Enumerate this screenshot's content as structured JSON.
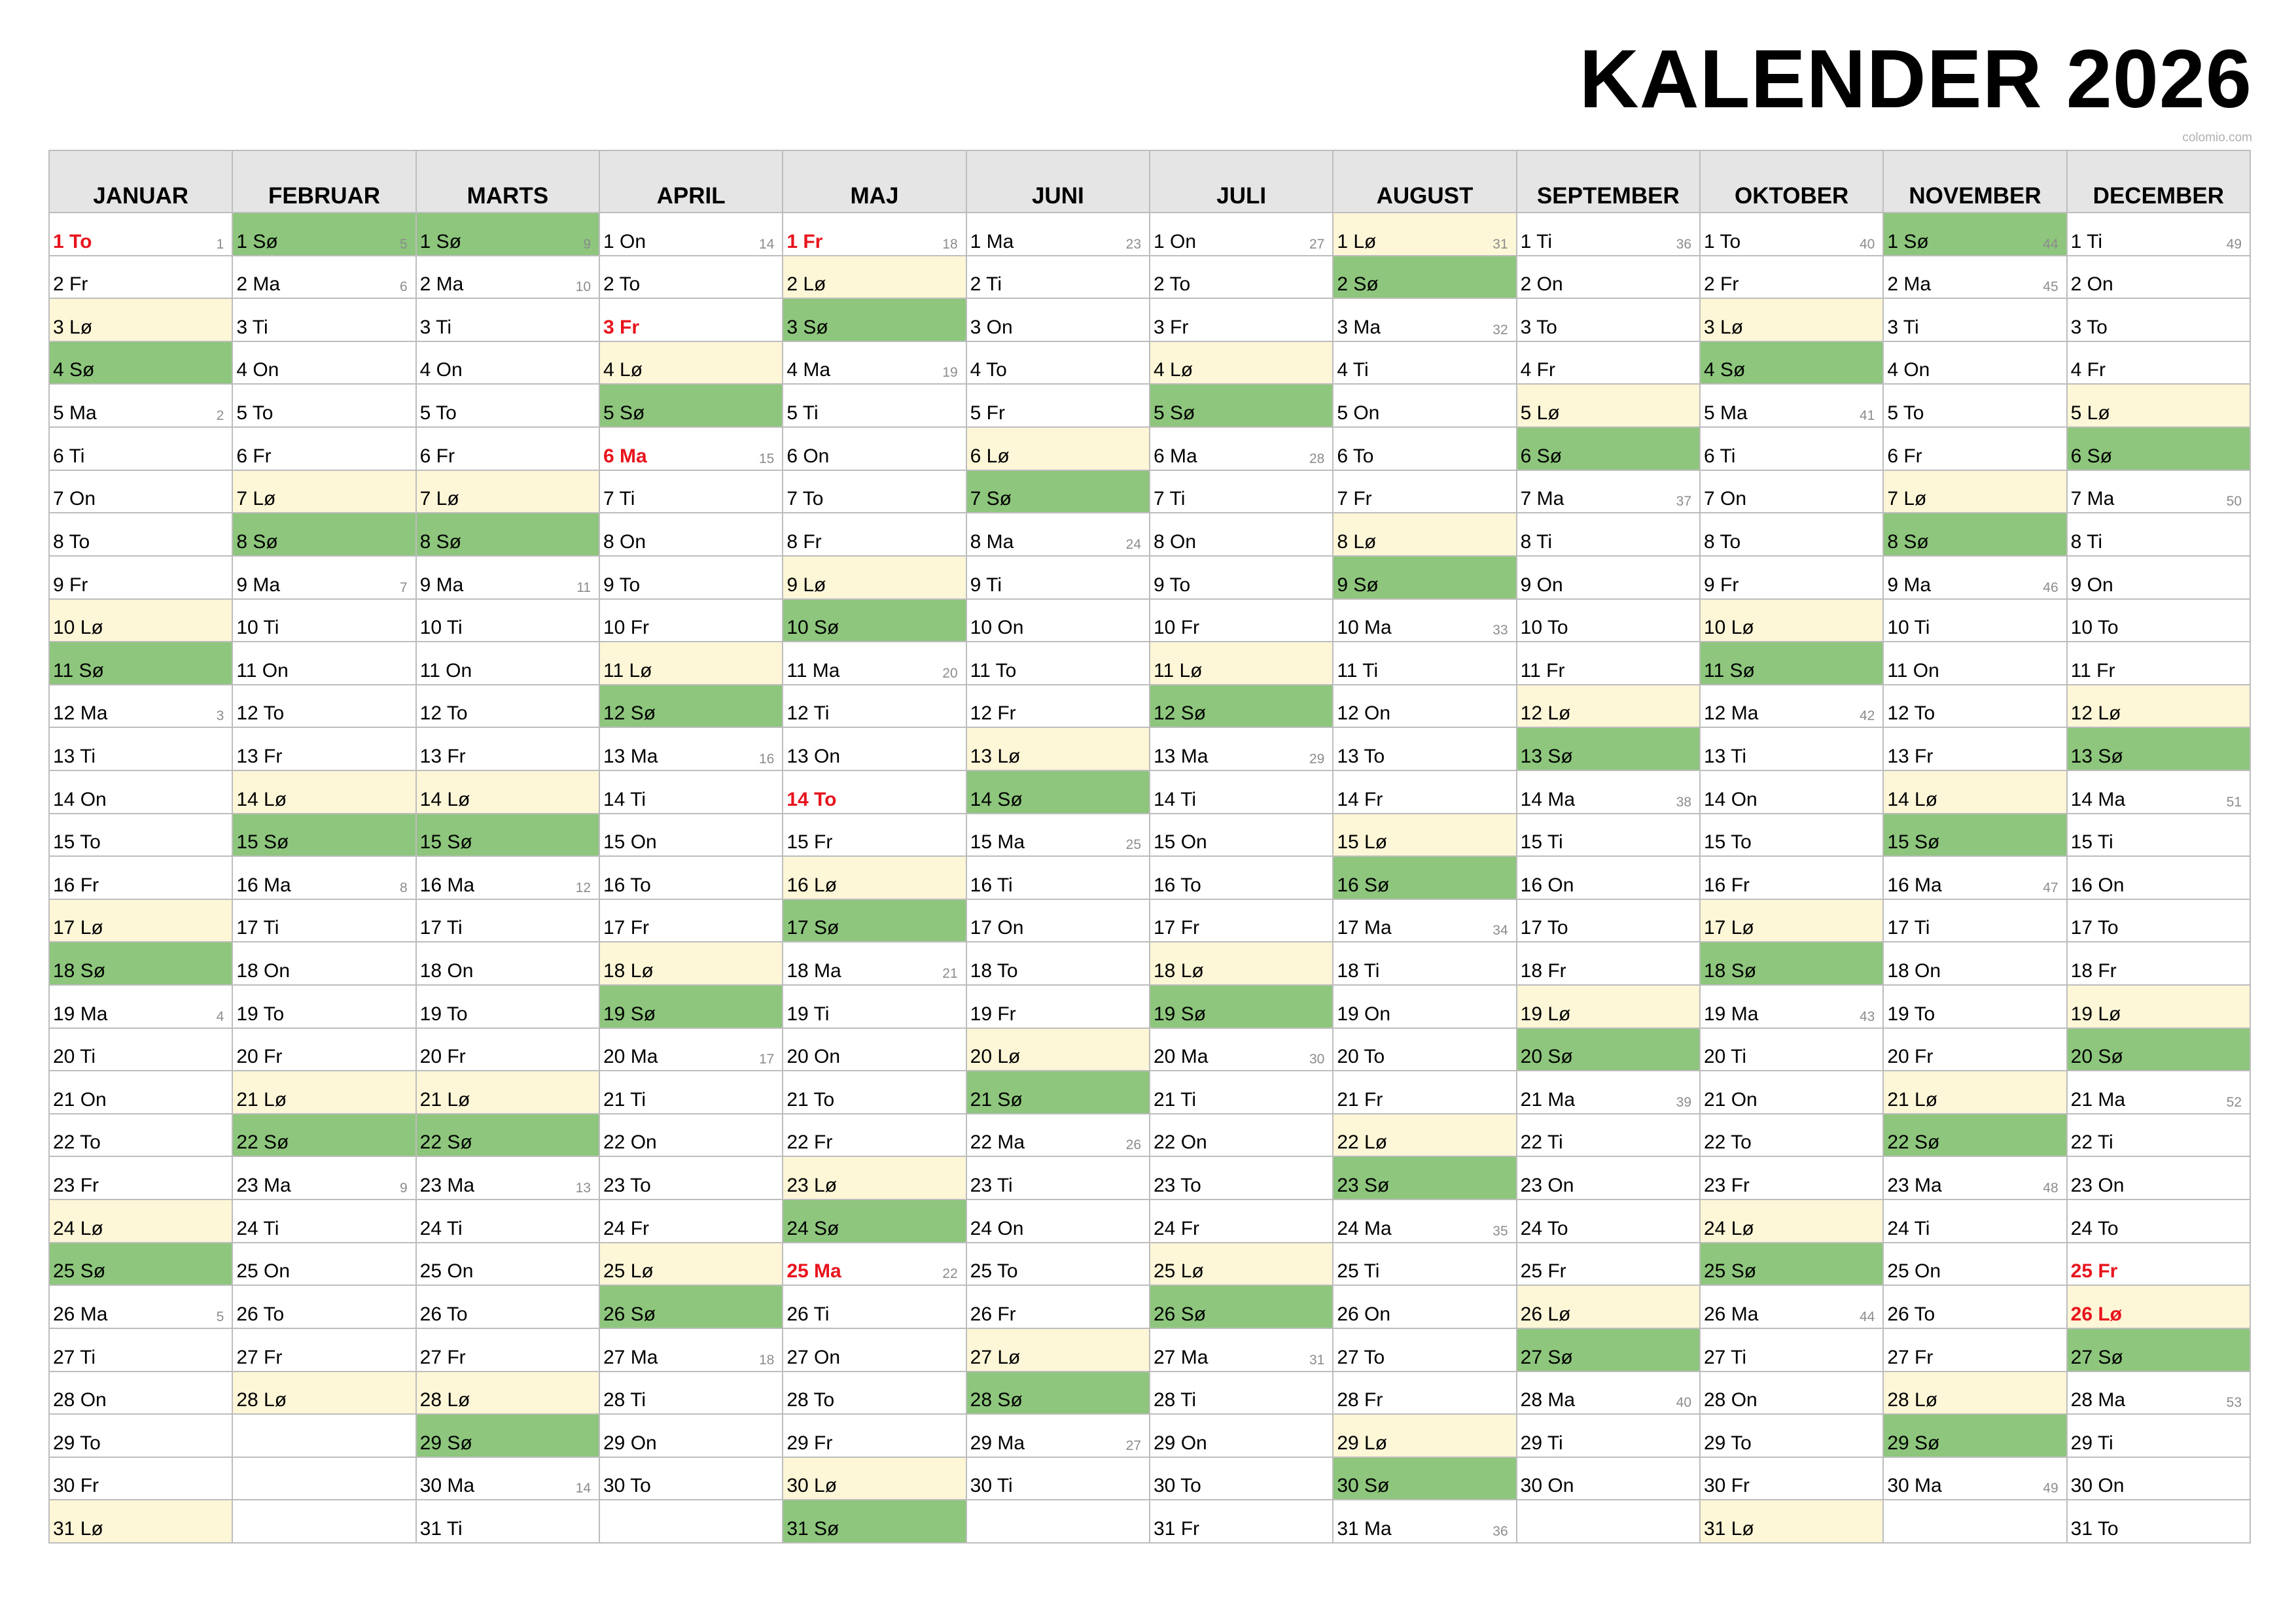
{
  "title": "KALENDER 2026",
  "credit": "colomio.com",
  "colors": {
    "saturday": "#fdf6d7",
    "sunday": "#8dc67c",
    "holiday_text": "#e8141d",
    "header_bg": "#e5e5e5"
  },
  "months": [
    {
      "name": "JANUAR",
      "first_dow": 3,
      "days": 31,
      "holidays": [
        1
      ],
      "weeks": {
        "1": "1",
        "5": "2",
        "12": "3",
        "19": "4",
        "26": "5"
      }
    },
    {
      "name": "FEBRUAR",
      "first_dow": 6,
      "days": 28,
      "holidays": [],
      "weeks": {
        "1": "5",
        "2": "6",
        "9": "7",
        "16": "8",
        "23": "9"
      }
    },
    {
      "name": "MARTS",
      "first_dow": 6,
      "days": 31,
      "holidays": [],
      "weeks": {
        "1": "9",
        "2": "10",
        "9": "11",
        "16": "12",
        "23": "13",
        "30": "14"
      }
    },
    {
      "name": "APRIL",
      "first_dow": 2,
      "days": 30,
      "holidays": [
        3,
        6
      ],
      "weeks": {
        "1": "14",
        "6": "15",
        "13": "16",
        "20": "17",
        "27": "18"
      }
    },
    {
      "name": "MAJ",
      "first_dow": 4,
      "days": 31,
      "holidays": [
        1,
        14,
        25
      ],
      "weeks": {
        "1": "18",
        "4": "19",
        "11": "20",
        "18": "21",
        "25": "22"
      }
    },
    {
      "name": "JUNI",
      "first_dow": 0,
      "days": 30,
      "holidays": [],
      "weeks": {
        "1": "23",
        "8": "24",
        "15": "25",
        "22": "26",
        "29": "27"
      }
    },
    {
      "name": "JULI",
      "first_dow": 2,
      "days": 31,
      "holidays": [],
      "weeks": {
        "1": "27",
        "6": "28",
        "13": "29",
        "20": "30",
        "27": "31"
      }
    },
    {
      "name": "AUGUST",
      "first_dow": 5,
      "days": 31,
      "holidays": [],
      "weeks": {
        "1": "31",
        "3": "32",
        "10": "33",
        "17": "34",
        "24": "35",
        "31": "36"
      }
    },
    {
      "name": "SEPTEMBER",
      "first_dow": 1,
      "days": 30,
      "holidays": [],
      "weeks": {
        "1": "36",
        "7": "37",
        "14": "38",
        "21": "39",
        "28": "40"
      }
    },
    {
      "name": "OKTOBER",
      "first_dow": 3,
      "days": 31,
      "holidays": [],
      "weeks": {
        "1": "40",
        "5": "41",
        "12": "42",
        "19": "43",
        "26": "44"
      }
    },
    {
      "name": "NOVEMBER",
      "first_dow": 6,
      "days": 30,
      "holidays": [],
      "weeks": {
        "1": "44",
        "2": "45",
        "9": "46",
        "16": "47",
        "23": "48",
        "30": "49"
      }
    },
    {
      "name": "DECEMBER",
      "first_dow": 1,
      "days": 31,
      "holidays": [
        25,
        26
      ],
      "weeks": {
        "1": "49",
        "7": "50",
        "14": "51",
        "21": "52",
        "28": "53"
      }
    }
  ],
  "weekday_abbr": [
    "Ma",
    "Ti",
    "On",
    "To",
    "Fr",
    "Lø",
    "Sø"
  ]
}
